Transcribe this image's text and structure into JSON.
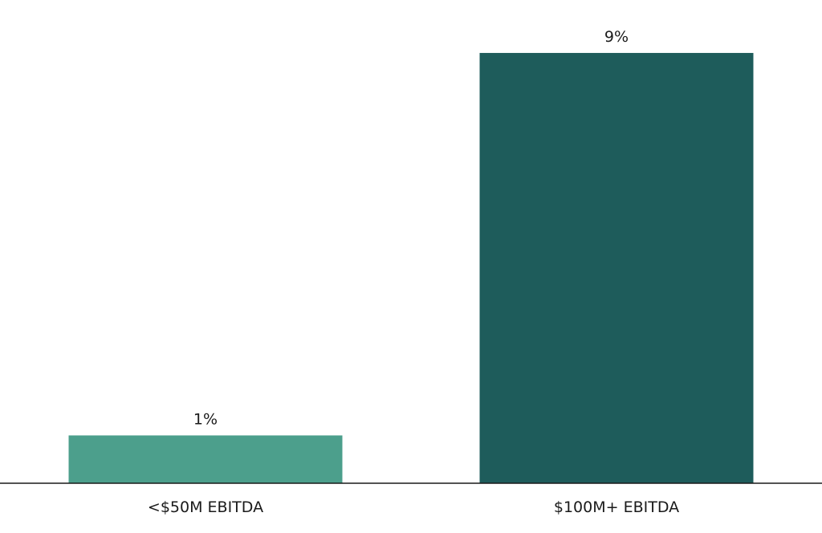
{
  "chart_data": {
    "type": "bar",
    "categories": [
      "<$50M EBITDA",
      "$100M+ EBITDA"
    ],
    "values": [
      1,
      9
    ],
    "value_labels": [
      "1%",
      "9%"
    ],
    "unit": "%",
    "colors": [
      "#4c9f8c",
      "#1e5c5b"
    ],
    "axis_color": "#1a1a1a",
    "ylim": [
      0,
      9.1
    ],
    "grid": false,
    "legend": "none",
    "title": "",
    "xlabel": "",
    "ylabel": ""
  }
}
